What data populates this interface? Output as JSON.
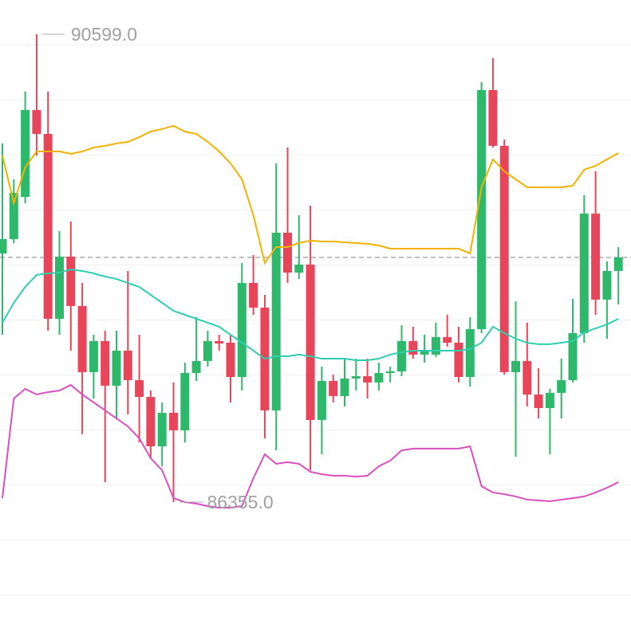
{
  "chart_data": {
    "type": "candlestick",
    "ylim": [
      85104,
      90910
    ],
    "up_color": "#2eb86b",
    "down_color": "#e8455a",
    "open": [
      88611,
      88741,
      89124,
      89912,
      89695,
      88018,
      88582,
      88134,
      87534,
      87816,
      87411,
      87729,
      87461,
      87309,
      86861,
      87165,
      87006,
      87526,
      87635,
      87816,
      87801,
      87490,
      88343,
      88119,
      87187,
      88799,
      88437,
      88510,
      87100,
      87454,
      87317,
      87476,
      87497,
      87440,
      87526,
      87541,
      87816,
      87693,
      87693,
      87852,
      87801,
      87490,
      87924,
      90093,
      89587,
      87534,
      87635,
      87331,
      87208,
      87346,
      87461,
      87888,
      88972,
      88192,
      88452
    ],
    "high": [
      89609,
      89283,
      90079,
      90599,
      90079,
      88813,
      88900,
      88343,
      87873,
      87910,
      87910,
      88452,
      87873,
      87367,
      87259,
      87440,
      87620,
      88032,
      87910,
      87873,
      87873,
      88524,
      88596,
      88235,
      89428,
      89572,
      88958,
      89045,
      87584,
      87512,
      87656,
      87656,
      87656,
      87620,
      87584,
      87960,
      87946,
      87873,
      87982,
      88054,
      87946,
      88032,
      90165,
      90382,
      89645,
      88177,
      87982,
      87570,
      87382,
      87656,
      88199,
      89139,
      89356,
      88539,
      88669
    ],
    "low": [
      87873,
      88705,
      89066,
      89500,
      87910,
      87873,
      87729,
      86970,
      87295,
      86536,
      87114,
      87150,
      86897,
      86753,
      86680,
      86355,
      86897,
      87454,
      87584,
      87729,
      87259,
      87367,
      88054,
      86933,
      86825,
      88343,
      88379,
      86644,
      86789,
      87259,
      87223,
      87367,
      87295,
      87367,
      87440,
      87497,
      87656,
      87620,
      87671,
      87765,
      87440,
      87403,
      87888,
      89572,
      87512,
      86767,
      87223,
      87114,
      86789,
      87114,
      87440,
      87801,
      88054,
      87837,
      88148
    ],
    "close": [
      88741,
      89160,
      89912,
      89695,
      88018,
      88582,
      88134,
      87534,
      87816,
      87411,
      87729,
      87461,
      87309,
      86861,
      87165,
      87006,
      87526,
      87635,
      87816,
      87794,
      87490,
      88343,
      88119,
      87187,
      88799,
      88437,
      88510,
      87100,
      87454,
      87317,
      87476,
      87497,
      87440,
      87526,
      87541,
      87816,
      87693,
      87729,
      87852,
      87801,
      87490,
      87924,
      90093,
      89587,
      87534,
      87635,
      87331,
      87208,
      87346,
      87461,
      87888,
      88972,
      88192,
      88452,
      88575
    ],
    "bands": [
      {
        "color": "#f2b200",
        "values": [
          89500,
          89066,
          89392,
          89536,
          89536,
          89536,
          89515,
          89536,
          89572,
          89587,
          89609,
          89623,
          89666,
          89717,
          89739,
          89768,
          89717,
          89695,
          89623,
          89536,
          89428,
          89283,
          88958,
          88524,
          88669,
          88669,
          88705,
          88727,
          88719,
          88719,
          88712,
          88705,
          88698,
          88683,
          88654,
          88654,
          88654,
          88654,
          88654,
          88654,
          88654,
          88611,
          89211,
          89464,
          89356,
          89283,
          89211,
          89211,
          89211,
          89211,
          89225,
          89370,
          89406,
          89464,
          89522
        ]
      },
      {
        "color": "#2ecfb0",
        "values": [
          87982,
          88163,
          88307,
          88416,
          88430,
          88437,
          88466,
          88452,
          88430,
          88401,
          88379,
          88343,
          88307,
          88235,
          88163,
          88090,
          88054,
          88018,
          87982,
          87946,
          87873,
          87801,
          87729,
          87656,
          87678,
          87678,
          87693,
          87678,
          87656,
          87656,
          87656,
          87642,
          87642,
          87656,
          87693,
          87714,
          87729,
          87729,
          87729,
          87729,
          87729,
          87743,
          87801,
          87946,
          87888,
          87837,
          87801,
          87787,
          87787,
          87801,
          87816,
          87895,
          87931,
          87967,
          88018
        ]
      },
      {
        "color": "#d94fc0",
        "values": [
          86391,
          87295,
          87382,
          87331,
          87353,
          87367,
          87418,
          87331,
          87259,
          87187,
          87114,
          87042,
          86933,
          86753,
          86644,
          86391,
          86355,
          86341,
          86319,
          86304,
          86304,
          86319,
          86572,
          86789,
          86702,
          86717,
          86702,
          86630,
          86608,
          86594,
          86594,
          86586,
          86594,
          86680,
          86731,
          86825,
          86840,
          86840,
          86840,
          86840,
          86840,
          86861,
          86500,
          86442,
          86427,
          86406,
          86377,
          86370,
          86363,
          86377,
          86391,
          86406,
          86442,
          86485,
          86536
        ]
      }
    ],
    "max_label": {
      "value": 90599,
      "label": "90599.0"
    },
    "min_label": {
      "value": 86355,
      "label": "86355.0"
    }
  }
}
